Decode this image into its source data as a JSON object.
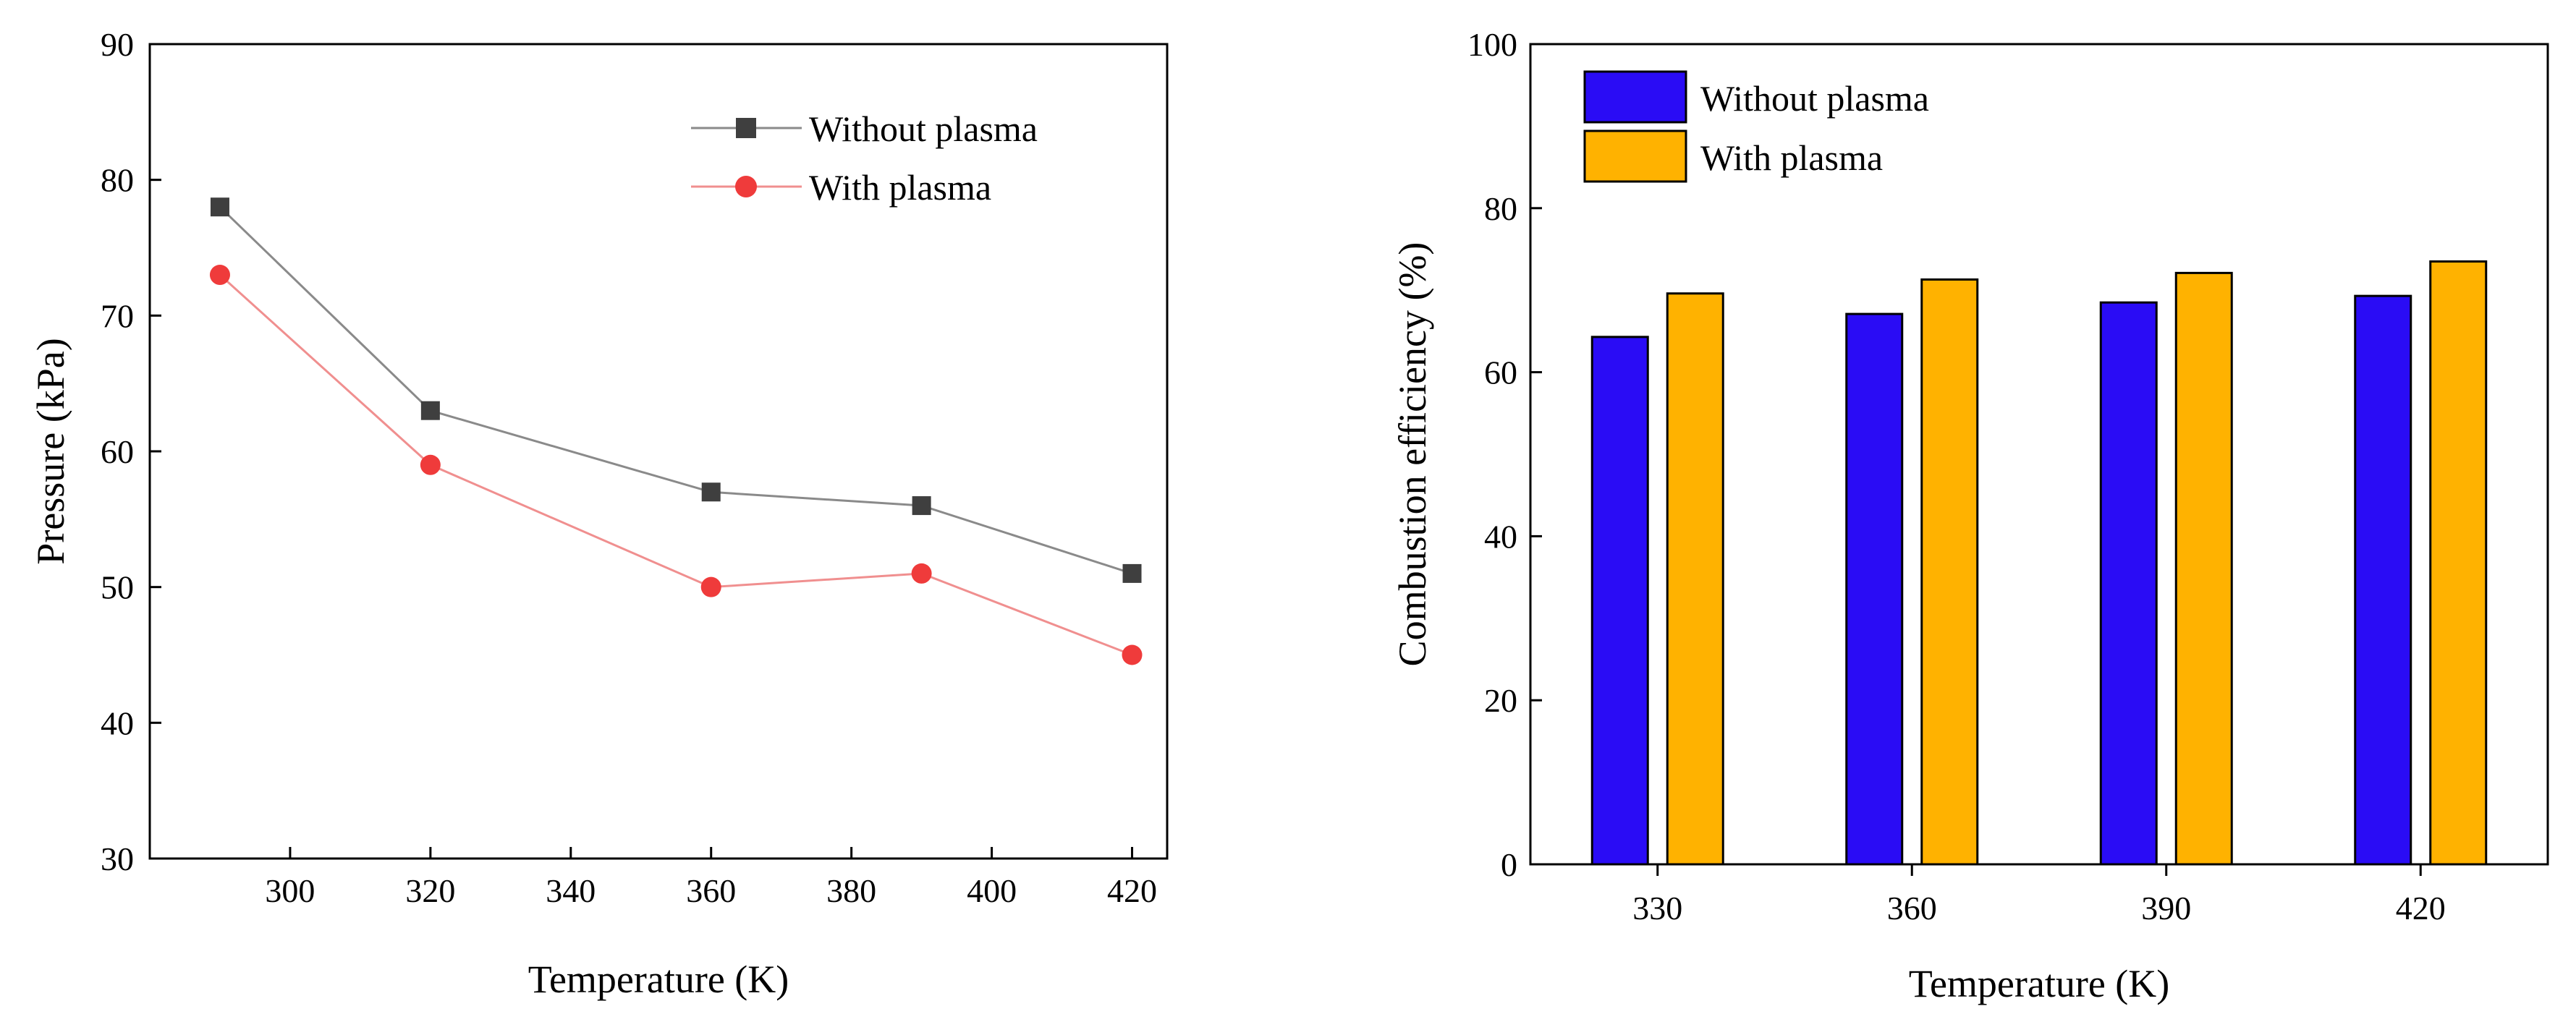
{
  "figure": {
    "panel_count": 2
  },
  "chart_data": [
    {
      "type": "line",
      "title": "",
      "xlabel": "Temperature (K)",
      "ylabel": "Pressure (kPa)",
      "xlim": [
        280,
        425
      ],
      "ylim": [
        30,
        90
      ],
      "xticks": [
        300,
        320,
        340,
        360,
        380,
        400,
        420
      ],
      "yticks": [
        30,
        40,
        50,
        60,
        70,
        80,
        90
      ],
      "xtick_labels": [
        "300",
        "320",
        "340",
        "360",
        "380",
        "400",
        "420"
      ],
      "ytick_labels": [
        "30",
        "40",
        "50",
        "60",
        "70",
        "80",
        "90"
      ],
      "x": [
        290,
        320,
        360,
        390,
        420
      ],
      "series": [
        {
          "name": "Without plasma",
          "color": "#8a8a8a",
          "marker": "square",
          "marker_color": "#3f3f3f",
          "values": [
            78,
            63,
            57,
            56,
            51
          ]
        },
        {
          "name": "With plasma",
          "color": "#f08f8f",
          "marker": "circle",
          "marker_color": "#ef3b3b",
          "values": [
            73,
            59,
            50,
            51,
            45
          ]
        }
      ],
      "legend": "top-right",
      "grid": false
    },
    {
      "type": "bar",
      "title": "",
      "xlabel": "Temperature (K)",
      "ylabel": "Combustion efficiency (%)",
      "ylim": [
        0,
        100
      ],
      "yticks": [
        0,
        20,
        40,
        60,
        80,
        100
      ],
      "ytick_labels": [
        "0",
        "20",
        "40",
        "60",
        "80",
        "100"
      ],
      "categories": [
        "330",
        "360",
        "390",
        "420"
      ],
      "series": [
        {
          "name": "Without plasma",
          "color": "#2a0cf5",
          "values": [
            64.3,
            67.1,
            68.5,
            69.3
          ]
        },
        {
          "name": "With plasma",
          "color": "#ffb200",
          "values": [
            69.6,
            71.3,
            72.1,
            73.5
          ]
        }
      ],
      "legend": "top-left",
      "grid": false
    }
  ]
}
